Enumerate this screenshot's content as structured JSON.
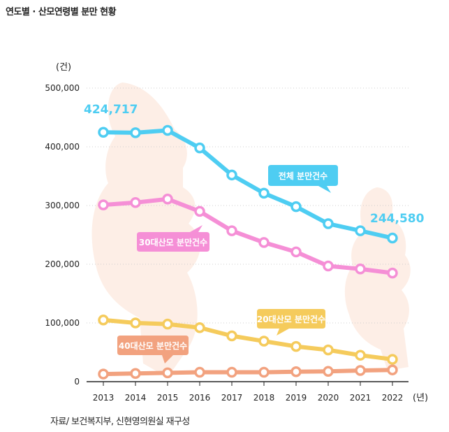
{
  "title": "연도별 · 산모연령별 분만 현황",
  "source": "자료/ 보건복지부, 신현영의원실 재구성",
  "chart_data": {
    "type": "line",
    "title": "연도별 · 산모연령별 분만 현황",
    "ylabel": "(건)",
    "xlabel": "(년)",
    "ylim": [
      0,
      500000
    ],
    "yticks": [
      0,
      100000,
      200000,
      300000,
      400000,
      500000
    ],
    "ytick_labels": [
      "0",
      "100,000",
      "200,000",
      "300,000",
      "400,000",
      "500,000"
    ],
    "categories": [
      "2013",
      "2014",
      "2015",
      "2016",
      "2017",
      "2018",
      "2019",
      "2020",
      "2021",
      "2022"
    ],
    "grid": true,
    "series": [
      {
        "key": "total",
        "name": "전체 분만건수",
        "color": "#4ecdf2",
        "values": [
          424717,
          424000,
          428000,
          398000,
          352000,
          321000,
          298000,
          269000,
          257000,
          244580
        ]
      },
      {
        "key": "age30",
        "name": "30대산모 분만건수",
        "color": "#f58fd6",
        "values": [
          301000,
          305000,
          311000,
          290000,
          257000,
          237000,
          221000,
          197000,
          192000,
          185000
        ]
      },
      {
        "key": "age20",
        "name": "20대산모 분만건수",
        "color": "#f5cb5c",
        "values": [
          105000,
          100000,
          98000,
          92000,
          78000,
          69000,
          60000,
          54000,
          45000,
          38000
        ]
      },
      {
        "key": "age40",
        "name": "40대산모 분만건수",
        "color": "#f2a27f",
        "values": [
          13000,
          14000,
          15000,
          16000,
          16000,
          16000,
          17000,
          17500,
          19000,
          20000
        ]
      }
    ],
    "annotations": [
      {
        "text": "424,717",
        "color": "#4ecdf2"
      },
      {
        "text": "244,580",
        "color": "#4ecdf2"
      }
    ]
  }
}
